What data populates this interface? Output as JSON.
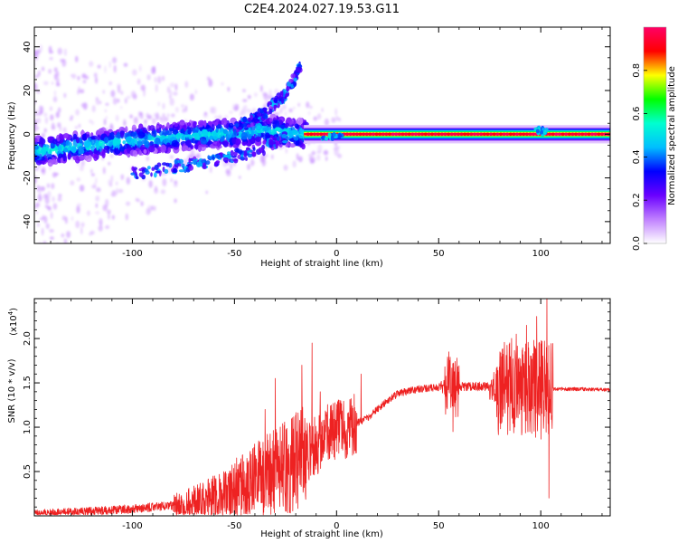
{
  "title": "C2E4.2024.027.19.53.G11",
  "colors": {
    "snr_line": "#ee2222",
    "colormap": [
      "#ffffff",
      "#c080ff",
      "#6a00ff",
      "#0000ff",
      "#00bfff",
      "#00ffd0",
      "#00ff00",
      "#ffff00",
      "#ff0000",
      "#ff0066"
    ]
  },
  "chart_data": [
    {
      "type": "heatmap",
      "name": "spectrogram",
      "xlabel": "Height of straight line (km)",
      "ylabel": "Frequency (Hz)",
      "xlim": [
        -148,
        134
      ],
      "ylim": [
        -50,
        49
      ],
      "xticks": [
        -100,
        -50,
        0,
        50,
        100
      ],
      "yticks": [
        -40,
        -20,
        0,
        20,
        40
      ],
      "colorbar": {
        "label": "Normalized spectral amplitude",
        "range": [
          0,
          1
        ],
        "ticks": [
          "0.0",
          "0.2",
          "0.4",
          "0.6",
          "0.8"
        ]
      },
      "features": [
        {
          "desc": "main trace",
          "x": [
            -148,
            -120,
            -90,
            -60,
            -30,
            -20,
            -15,
            134
          ],
          "y": [
            -8,
            -5,
            -2,
            0,
            2,
            0,
            0,
            0
          ]
        },
        {
          "desc": "upper branch",
          "x": [
            -50,
            -35,
            -25,
            -18
          ],
          "y": [
            2,
            10,
            18,
            30
          ]
        },
        {
          "desc": "lower branch",
          "x": [
            -100,
            -80,
            -60,
            -40,
            -25
          ],
          "y": [
            -18,
            -15,
            -12,
            -8,
            -2
          ]
        }
      ]
    },
    {
      "type": "line",
      "name": "snr",
      "xlabel": "Height of straight line (km)",
      "ylabel": "SNR (10 * v/v)",
      "yscale_label": "(x10",
      "yscale_exp": "4",
      "yscale_close": ")",
      "xlim": [
        -148,
        134
      ],
      "ylim": [
        0,
        2.45
      ],
      "xticks": [
        -100,
        -50,
        0,
        50,
        100
      ],
      "yticks": [
        0.5,
        1.0,
        1.5,
        2.0
      ],
      "ytick_labels": [
        "0.5",
        "1.0",
        "1.5",
        "2.0"
      ],
      "envelope_x": [
        -148,
        -120,
        -100,
        -80,
        -70,
        -60,
        -50,
        -40,
        -30,
        -20,
        -15,
        -10,
        -5,
        0,
        5,
        10,
        15,
        20,
        25,
        30,
        40,
        50,
        60,
        70,
        80,
        90,
        95,
        100,
        102,
        104,
        106,
        110,
        120,
        134
      ],
      "envelope_y": [
        0.02,
        0.05,
        0.08,
        0.12,
        0.15,
        0.2,
        0.3,
        0.4,
        0.5,
        0.6,
        0.7,
        0.8,
        0.9,
        0.95,
        1.0,
        1.05,
        1.1,
        1.2,
        1.3,
        1.38,
        1.43,
        1.45,
        1.46,
        1.46,
        1.45,
        1.44,
        1.43,
        1.42,
        1.42,
        1.42,
        1.43,
        1.43,
        1.43,
        1.42
      ],
      "spikes": [
        {
          "x": -35,
          "y": 1.2
        },
        {
          "x": -30,
          "y": 1.55
        },
        {
          "x": -17,
          "y": 1.7
        },
        {
          "x": -12,
          "y": 1.95
        },
        {
          "x": -8,
          "y": 1.4
        },
        {
          "x": 12,
          "y": 1.6
        },
        {
          "x": 55,
          "y": 1.85
        },
        {
          "x": 57,
          "y": 0.95
        },
        {
          "x": 80,
          "y": 1.85
        },
        {
          "x": 88,
          "y": 2.05
        },
        {
          "x": 93,
          "y": 2.15
        },
        {
          "x": 98,
          "y": 2.25
        },
        {
          "x": 103,
          "y": 2.5
        },
        {
          "x": 104,
          "y": 0.2
        }
      ]
    }
  ]
}
